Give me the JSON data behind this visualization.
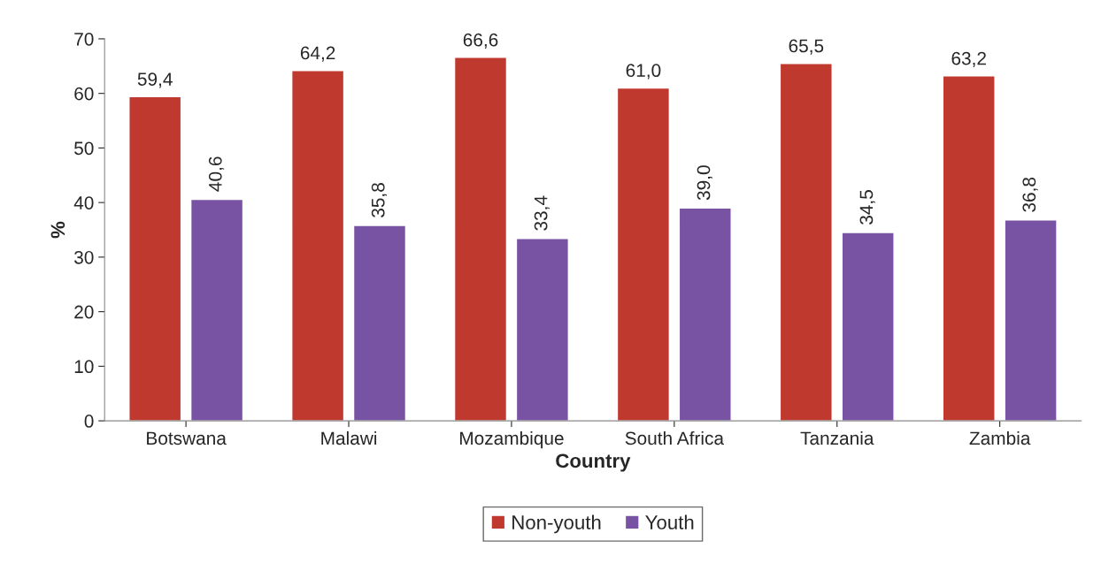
{
  "chart_data": {
    "type": "bar",
    "xlabel": "Country",
    "ylabel": "%",
    "categories": [
      "Botswana",
      "Malawi",
      "Mozambique",
      "South Africa",
      "Tanzania",
      "Zambia"
    ],
    "series": [
      {
        "name": "Non-youth",
        "color": "#c0392f",
        "values": [
          59.4,
          64.2,
          66.6,
          61.0,
          65.5,
          63.2
        ],
        "value_labels": [
          "59,4",
          "64,2",
          "66,6",
          "61,0",
          "65,5",
          "63,2"
        ]
      },
      {
        "name": "Youth",
        "color": "#7953a3",
        "values": [
          40.6,
          35.8,
          33.4,
          39.0,
          34.5,
          36.8
        ],
        "value_labels": [
          "40,6",
          "35,8",
          "33,4",
          "39,0",
          "34,5",
          "36,8"
        ]
      }
    ],
    "ylim": [
      0,
      70
    ],
    "yticks": [
      0,
      10,
      20,
      30,
      40,
      50,
      60,
      70
    ],
    "grid": false,
    "legend": "bottom"
  }
}
